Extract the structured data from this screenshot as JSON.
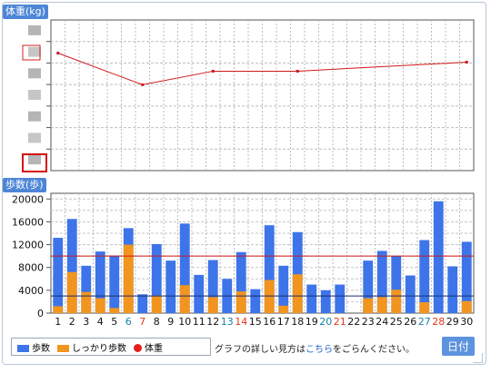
{
  "chart_data": [
    {
      "type": "line",
      "ylabel": "体重(kg)",
      "x": [
        1,
        7,
        12,
        18,
        30
      ],
      "series": [
        {
          "values": [
            0.78,
            0.57,
            0.66,
            0.66,
            0.72
          ],
          "color": "#d01818"
        }
      ],
      "ylim": [
        0,
        1
      ],
      "note": "y tick labels are blurred; values are relative position 0-1 on the hidden scale"
    },
    {
      "type": "bar",
      "ylabel": "歩数(歩)",
      "xlabel": "日付",
      "categories": [
        "1",
        "2",
        "3",
        "4",
        "5",
        "6",
        "7",
        "8",
        "9",
        "10",
        "11",
        "12",
        "13",
        "14",
        "15",
        "16",
        "17",
        "18",
        "19",
        "20",
        "21",
        "22",
        "23",
        "24",
        "25",
        "26",
        "27",
        "28",
        "29",
        "30"
      ],
      "series": [
        {
          "name": "歩数",
          "color": "#3d74e9",
          "values": [
            13200,
            16500,
            8300,
            10800,
            10100,
            14900,
            3300,
            12100,
            9200,
            15700,
            6700,
            9300,
            6000,
            10700,
            4200,
            15400,
            8300,
            14200,
            5000,
            4000,
            5000,
            0,
            9200,
            10900,
            10000,
            6600,
            12800,
            19600,
            8200,
            12500
          ]
        },
        {
          "name": "しっかり歩数",
          "color": "#f2951e",
          "values": [
            1200,
            7200,
            3700,
            2600,
            900,
            12000,
            0,
            3100,
            0,
            4900,
            0,
            2800,
            0,
            3800,
            0,
            5800,
            1300,
            6800,
            0,
            0,
            0,
            0,
            2600,
            2800,
            4100,
            0,
            1900,
            0,
            0,
            2100
          ]
        }
      ],
      "ylim": [
        0,
        21000
      ],
      "yticks": [
        0,
        4000,
        8000,
        12000,
        16000,
        20000
      ],
      "reference_lines": [
        {
          "value": 10000,
          "color": "#d01818"
        },
        {
          "value": 3000,
          "color": "#1c2f6e"
        }
      ],
      "saturday_days": [
        6,
        13,
        20,
        27
      ],
      "holiday_days": [
        7,
        14,
        21,
        28
      ]
    }
  ],
  "legend": {
    "steps": "歩数",
    "brisk_steps": "しっかり歩数",
    "weight": "体重"
  },
  "note": {
    "before": "グラフの詳しい見方は",
    "link": "こちら",
    "after": "をごらんください。"
  },
  "x_axis_badge": "日付",
  "weight_axis_label": "体重(kg)",
  "steps_axis_label": "歩数(歩)"
}
